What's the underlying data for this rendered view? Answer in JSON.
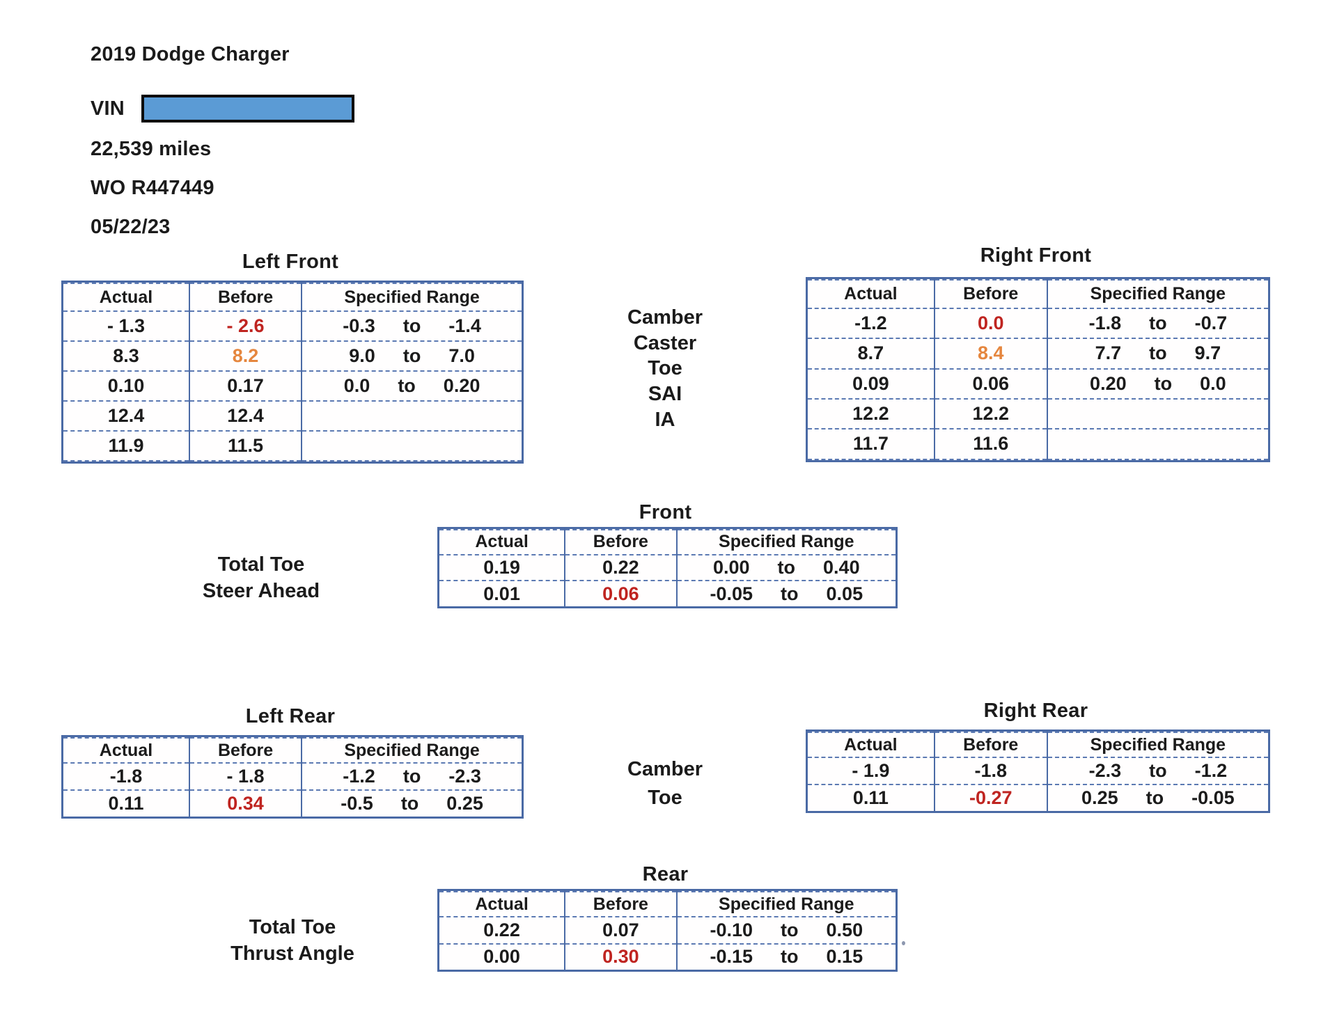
{
  "header": {
    "vehicle": "2019 Dodge Charger",
    "vin_label": "VIN",
    "vin_redacted_color": "#5b9bd5",
    "mileage": "22,539 miles",
    "work_order": "WO R447449",
    "date": "05/22/23"
  },
  "colors": {
    "flag_red": "#bf2420",
    "flag_orange": "#e5863e",
    "table_border_blue": "#4a6aa5",
    "text": "#1b1b1b"
  },
  "row_labels": {
    "front": [
      "Camber",
      "Caster",
      "Toe",
      "SAI",
      "IA"
    ],
    "front_totals": [
      "Total Toe",
      "Steer Ahead"
    ],
    "rear": [
      "Camber",
      "Toe"
    ],
    "rear_totals": [
      "Total Toe",
      "Thrust Angle"
    ]
  },
  "tables": {
    "front_left": {
      "title": "Left Front",
      "headers": [
        "Actual",
        "Before",
        "Specified Range"
      ],
      "rows": [
        {
          "name": "camber",
          "actual": "- 1.3",
          "before": "- 2.6",
          "flag": "red",
          "range": [
            "-0.3",
            "to",
            "-1.4"
          ]
        },
        {
          "name": "caster",
          "actual": "8.3",
          "before": "8.2",
          "flag": "orange",
          "range": [
            "9.0",
            "to",
            "7.0"
          ]
        },
        {
          "name": "toe",
          "actual": "0.10",
          "before": "0.17",
          "flag": null,
          "range": [
            "0.0",
            "to",
            "0.20"
          ]
        },
        {
          "name": "sai",
          "actual": "12.4",
          "before": "12.4",
          "flag": null,
          "range": null
        },
        {
          "name": "ia",
          "actual": "11.9",
          "before": "11.5",
          "flag": null,
          "range": null
        },
        {
          "name": "blank",
          "actual": "",
          "before": "",
          "flag": null,
          "range": null
        }
      ]
    },
    "front_right": {
      "title": "Right Front",
      "headers": [
        "Actual",
        "Before",
        "Specified Range"
      ],
      "rows": [
        {
          "name": "camber",
          "actual": "-1.2",
          "before": "0.0",
          "flag": "red",
          "range": [
            "-1.8",
            "to",
            "-0.7"
          ]
        },
        {
          "name": "caster",
          "actual": "8.7",
          "before": "8.4",
          "flag": "orange",
          "range": [
            "7.7",
            "to",
            "9.7"
          ]
        },
        {
          "name": "toe",
          "actual": "0.09",
          "before": "0.06",
          "flag": null,
          "range": [
            "0.20",
            "to",
            "0.0"
          ]
        },
        {
          "name": "sai",
          "actual": "12.2",
          "before": "12.2",
          "flag": null,
          "range": null
        },
        {
          "name": "ia",
          "actual": "11.7",
          "before": "11.6",
          "flag": null,
          "range": null
        },
        {
          "name": "blank",
          "actual": "",
          "before": "",
          "flag": null,
          "range": null
        }
      ]
    },
    "front_mid": {
      "title": "Front",
      "headers": [
        "Actual",
        "Before",
        "Specified Range"
      ],
      "rows": [
        {
          "name": "total-toe",
          "actual": "0.19",
          "before": "0.22",
          "flag": null,
          "range": [
            "0.00",
            "to",
            "0.40"
          ]
        },
        {
          "name": "steer-ahead",
          "actual": "0.01",
          "before": "0.06",
          "flag": "red",
          "range": [
            "-0.05",
            "to",
            "0.05"
          ]
        }
      ]
    },
    "rear_left": {
      "title": "Left Rear",
      "headers": [
        "Actual",
        "Before",
        "Specified Range"
      ],
      "rows": [
        {
          "name": "camber",
          "actual": "-1.8",
          "before": "- 1.8",
          "flag": null,
          "range": [
            "-1.2",
            "to",
            "-2.3"
          ]
        },
        {
          "name": "toe",
          "actual": "0.11",
          "before": "0.34",
          "flag": "red",
          "range": [
            "-0.5",
            "to",
            "0.25"
          ]
        }
      ]
    },
    "rear_right": {
      "title": "Right Rear",
      "headers": [
        "Actual",
        "Before",
        "Specified Range"
      ],
      "rows": [
        {
          "name": "camber",
          "actual": "- 1.9",
          "before": "-1.8",
          "flag": null,
          "range": [
            "-2.3",
            "to",
            "-1.2"
          ]
        },
        {
          "name": "toe",
          "actual": "0.11",
          "before": "-0.27",
          "flag": "red",
          "range": [
            "0.25",
            "to",
            "-0.05"
          ]
        }
      ]
    },
    "rear_mid": {
      "title": "Rear",
      "headers": [
        "Actual",
        "Before",
        "Specified Range"
      ],
      "rows": [
        {
          "name": "total-toe",
          "actual": "0.22",
          "before": "0.07",
          "flag": null,
          "range": [
            "-0.10",
            "to",
            "0.50"
          ]
        },
        {
          "name": "thrust-angle",
          "actual": "0.00",
          "before": "0.30",
          "flag": "red",
          "range": [
            "-0.15",
            "to",
            "0.15"
          ]
        }
      ]
    }
  }
}
